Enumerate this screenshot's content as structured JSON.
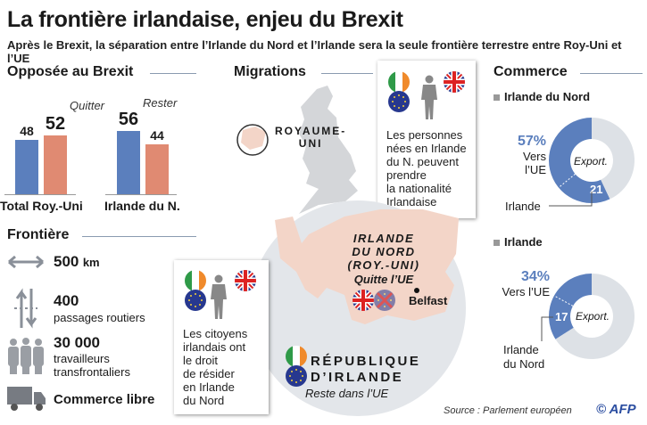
{
  "title": "La frontière irlandaise, enjeu du Brexit",
  "subtitle": "Après le Brexit, la séparation entre l’Irlande du Nord et l’Irlande sera la seule frontière terrestre entre Roy-Uni et l’UE",
  "opposee": {
    "heading": "Opposée au Brexit",
    "quitter": "Quitter",
    "rester": "Rester"
  },
  "frontiere": {
    "heading": "Frontière",
    "km_value": "500",
    "km_unit": "km",
    "routes_value": "400",
    "routes_label": "passages routiers",
    "workers_value": "30 000",
    "workers_label1": "travailleurs",
    "workers_label2": "transfrontaliers",
    "trade": "Commerce libre"
  },
  "migrations": {
    "heading": "Migrations",
    "uk_label": "ROYAUME-UNI",
    "uk_label1": "ROYAUME-",
    "uk_label2": "UNI",
    "box1": [
      "Les personnes",
      "nées en Irlande",
      "du N. peuvent",
      "prendre",
      "la nationalité",
      "Irlandaise"
    ],
    "box2": [
      "Les citoyens",
      "irlandais ont",
      "le droit",
      "de résider",
      "en Irlande",
      "du Nord"
    ],
    "ni": [
      "IRLANDE",
      "DU NORD",
      "(ROY.-UNI)"
    ],
    "ni_status": "Quitte l’UE",
    "belfast": "Belfast",
    "roi": [
      "RÉPUBLIQUE",
      "D’IRLANDE"
    ],
    "roi_status": "Reste dans l’UE"
  },
  "commerce": {
    "heading": "Commerce",
    "ni_title": "Irlande du Nord",
    "ie_title": "Irlande",
    "export": "Export.",
    "ni_pct": "57%",
    "ni_to": "Vers l’UE",
    "ni_sub_label": "Irlande",
    "ni_sub_value": "21",
    "ie_pct": "34%",
    "ie_to": "Vers l’UE",
    "ie_sub_label1": "Irlande",
    "ie_sub_label2": "du Nord",
    "ie_sub_value": "17"
  },
  "source": "Source : Parlement européen",
  "credit": "© AFP",
  "colors": {
    "remain": "#5b7fbd",
    "leave": "#e08a72",
    "donut_rest": "#dde1e6",
    "ni_map": "#f3d5c8"
  },
  "chart_data": [
    {
      "type": "bar",
      "title": "Opposée au Brexit",
      "categories": [
        "Total Roy.-Uni",
        "Irlande du N."
      ],
      "series": [
        {
          "name": "Rester",
          "values": [
            48,
            56
          ]
        },
        {
          "name": "Quitter",
          "values": [
            52,
            44
          ]
        }
      ]
    },
    {
      "type": "pie",
      "title": "Irlande du Nord",
      "center_label": "Export.",
      "slices": [
        {
          "label": "Vers l’UE",
          "value": 57,
          "of_which": {
            "label": "Irlande",
            "value": 21
          }
        },
        {
          "label": "",
          "value": 43
        }
      ]
    },
    {
      "type": "pie",
      "title": "Irlande",
      "center_label": "Export.",
      "slices": [
        {
          "label": "Vers l’UE",
          "value": 34,
          "of_which": {
            "label": "Irlande du Nord",
            "value": 17
          }
        },
        {
          "label": "",
          "value": 66
        }
      ]
    }
  ]
}
